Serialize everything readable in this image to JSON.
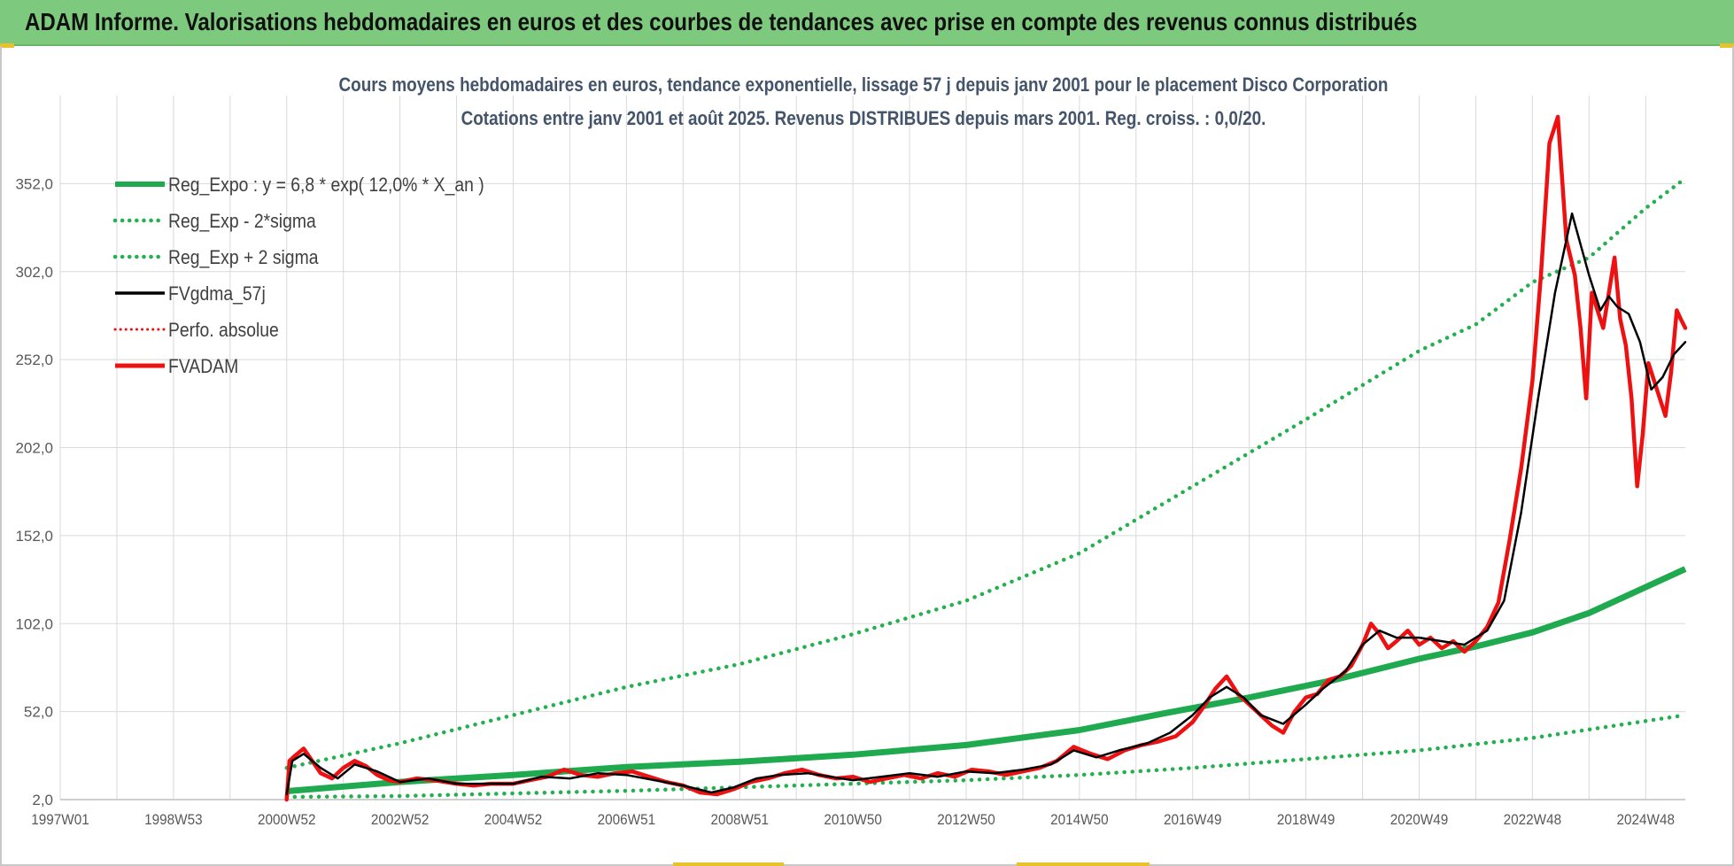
{
  "banner": {
    "title": "ADAM Informe. Valorisations hebdomadaires en euros et des courbes de tendances avec prise en compte des revenus connus distribués"
  },
  "colors": {
    "banner_bg": "#7dc97d",
    "reg_green": "#1faa4f",
    "sigma_green": "#23b04f",
    "gdma_black": "#000000",
    "fvadam_red": "#ee1111",
    "grid": "#d9d9d9"
  },
  "chart_data": {
    "type": "line",
    "title": "Cours moyens hebdomadaires en euros, tendance exponentielle, lissage 57 j depuis janv 2001 pour le placement Disco Corporation",
    "subtitle": "Cotations entre janv 2001 et août 2025. Revenus DISTRIBUES depuis mars 2001. Reg. croiss. : 0,0/20.",
    "xlabel": "",
    "ylabel": "",
    "x_tick_labels": [
      "1997W01",
      "1998W53",
      "2000W52",
      "2002W52",
      "2004W52",
      "2006W51",
      "2008W51",
      "2010W50",
      "2012W50",
      "2014W50",
      "2016W49",
      "2018W49",
      "2020W49",
      "2022W48",
      "2024W48"
    ],
    "x_ticks_year": [
      1997.0,
      1999.0,
      2001.0,
      2003.0,
      2005.0,
      2007.0,
      2009.0,
      2011.0,
      2013.0,
      2015.0,
      2017.0,
      2019.0,
      2021.0,
      2023.0,
      2025.0
    ],
    "y_tick_labels": [
      "2,0",
      "52,0",
      "102,0",
      "152,0",
      "202,0",
      "252,0",
      "302,0",
      "352,0"
    ],
    "y_ticks": [
      2,
      52,
      102,
      152,
      202,
      252,
      302,
      352
    ],
    "xlim": [
      1997.0,
      2025.7
    ],
    "ylim": [
      2,
      402
    ],
    "grid": true,
    "legend_position": "top-left",
    "legend": [
      {
        "label": "Reg_Expo : y = 6,8 * exp( 12,0% *  X_an )",
        "color": "#1faa4f",
        "style": "solid-thick"
      },
      {
        "label": "Reg_Exp - 2*sigma",
        "color": "#23b04f",
        "style": "dotted"
      },
      {
        "label": "Reg_Exp + 2 sigma",
        "color": "#23b04f",
        "style": "dotted"
      },
      {
        "label": "FVgdma_57j",
        "color": "#000000",
        "style": "solid"
      },
      {
        "label": "Perfo. absolue",
        "color": "#ee1111",
        "style": "dotted"
      },
      {
        "label": "FVADAM",
        "color": "#ee1111",
        "style": "solid-thick"
      }
    ],
    "series": [
      {
        "name": "Reg_Expo : y = 6,8 * exp( 12,0% *  X_an )",
        "x": [
          2001.0,
          2003.0,
          2005.0,
          2007.0,
          2009.0,
          2011.0,
          2013.0,
          2015.0,
          2016.5,
          2018.0,
          2019.5,
          2021.0,
          2022.0,
          2023.0,
          2024.0,
          2025.7
        ],
        "y": [
          6.8,
          12.0,
          16.0,
          20.5,
          23.5,
          27.5,
          33.0,
          41.5,
          51.0,
          60.0,
          70.0,
          82.0,
          89.0,
          97.0,
          108.0,
          133.0
        ]
      },
      {
        "name": "Reg_Exp - 2*sigma",
        "x": [
          2001.0,
          2003.0,
          2005.0,
          2007.0,
          2009.0,
          2011.0,
          2013.0,
          2015.0,
          2017.0,
          2019.0,
          2021.0,
          2023.0,
          2025.7
        ],
        "y": [
          3.5,
          4.0,
          5.5,
          7.0,
          9.0,
          11.0,
          13.0,
          16.0,
          20.0,
          25.0,
          30.0,
          37.0,
          50.0
        ]
      },
      {
        "name": "Reg_Exp + 2 sigma",
        "x": [
          2001.0,
          2003.0,
          2005.0,
          2007.0,
          2009.0,
          2011.0,
          2013.0,
          2015.0,
          2017.0,
          2019.0,
          2021.0,
          2022.0,
          2023.0,
          2024.0,
          2025.0,
          2025.7
        ],
        "y": [
          20.0,
          34.0,
          50.0,
          66.0,
          79.0,
          96.0,
          115.0,
          142.0,
          180.0,
          218.0,
          257.0,
          272.0,
          296.0,
          310.0,
          338.0,
          355.0
        ]
      },
      {
        "name": "FVgdma_57j",
        "x": [
          2001.0,
          2001.1,
          2001.3,
          2001.6,
          2001.9,
          2002.2,
          2002.6,
          2003.0,
          2003.5,
          2004.0,
          2004.5,
          2005.0,
          2005.5,
          2006.0,
          2006.5,
          2007.0,
          2007.5,
          2008.0,
          2008.5,
          2008.9,
          2009.3,
          2009.7,
          2010.2,
          2010.6,
          2011.0,
          2011.5,
          2012.0,
          2012.5,
          2013.0,
          2013.5,
          2014.0,
          2014.5,
          2014.9,
          2015.3,
          2015.7,
          2016.2,
          2016.6,
          2017.0,
          2017.3,
          2017.6,
          2017.9,
          2018.2,
          2018.6,
          2019.0,
          2019.3,
          2019.7,
          2020.0,
          2020.3,
          2020.6,
          2021.0,
          2021.4,
          2021.8,
          2022.2,
          2022.5,
          2022.8,
          2023.1,
          2023.4,
          2023.7,
          2024.0,
          2024.2,
          2024.35,
          2024.5,
          2024.7,
          2024.9,
          2025.1,
          2025.3,
          2025.5,
          2025.7
        ],
        "y": [
          5,
          24,
          28,
          20,
          14,
          22,
          18,
          12,
          14,
          11,
          11,
          11,
          15,
          14,
          17,
          16,
          13,
          10,
          6,
          9,
          14,
          16,
          17,
          15,
          13,
          15,
          17,
          15,
          18,
          17,
          19,
          22,
          30,
          26,
          30,
          34,
          40,
          50,
          60,
          66,
          60,
          50,
          45,
          56,
          65,
          75,
          90,
          98,
          94,
          94,
          92,
          90,
          98,
          115,
          165,
          230,
          290,
          335,
          300,
          280,
          288,
          282,
          278,
          262,
          235,
          242,
          255,
          262
        ]
      },
      {
        "name": "FVADAM",
        "x": [
          2001.0,
          2001.05,
          2001.15,
          2001.3,
          2001.45,
          2001.6,
          2001.8,
          2002.0,
          2002.2,
          2002.4,
          2002.6,
          2002.8,
          2003.0,
          2003.3,
          2003.6,
          2004.0,
          2004.3,
          2004.6,
          2005.0,
          2005.3,
          2005.6,
          2005.9,
          2006.2,
          2006.5,
          2006.8,
          2007.1,
          2007.4,
          2007.7,
          2008.0,
          2008.3,
          2008.6,
          2008.9,
          2009.2,
          2009.5,
          2009.8,
          2010.1,
          2010.4,
          2010.7,
          2011.0,
          2011.3,
          2011.6,
          2011.9,
          2012.2,
          2012.5,
          2012.8,
          2013.1,
          2013.4,
          2013.7,
          2014.0,
          2014.3,
          2014.6,
          2014.9,
          2015.2,
          2015.5,
          2015.8,
          2016.1,
          2016.4,
          2016.7,
          2017.0,
          2017.2,
          2017.4,
          2017.6,
          2017.8,
          2018.0,
          2018.2,
          2018.4,
          2018.6,
          2018.8,
          2019.0,
          2019.2,
          2019.4,
          2019.6,
          2019.8,
          2020.0,
          2020.15,
          2020.3,
          2020.45,
          2020.6,
          2020.8,
          2021.0,
          2021.2,
          2021.4,
          2021.6,
          2021.8,
          2022.0,
          2022.2,
          2022.4,
          2022.6,
          2022.8,
          2023.0,
          2023.15,
          2023.3,
          2023.45,
          2023.6,
          2023.75,
          2023.85,
          2023.95,
          2024.05,
          2024.15,
          2024.25,
          2024.35,
          2024.45,
          2024.55,
          2024.65,
          2024.75,
          2024.85,
          2024.95,
          2025.05,
          2025.15,
          2025.25,
          2025.35,
          2025.45,
          2025.55,
          2025.62,
          2025.7
        ],
        "y": [
          2,
          24,
          27,
          31,
          24,
          17,
          14,
          20,
          24,
          21,
          16,
          13,
          12,
          14,
          13,
          11,
          10,
          11,
          11,
          13,
          15,
          19,
          16,
          15,
          17,
          18,
          15,
          12,
          10,
          6,
          5,
          8,
          12,
          14,
          17,
          19,
          16,
          14,
          15,
          12,
          14,
          16,
          14,
          17,
          15,
          19,
          18,
          16,
          18,
          20,
          24,
          32,
          28,
          25,
          30,
          33,
          35,
          38,
          46,
          55,
          65,
          72,
          62,
          56,
          50,
          44,
          40,
          52,
          60,
          62,
          70,
          72,
          78,
          90,
          102,
          96,
          88,
          92,
          98,
          90,
          94,
          88,
          92,
          86,
          92,
          100,
          114,
          150,
          190,
          240,
          300,
          375,
          390,
          320,
          300,
          270,
          230,
          290,
          280,
          270,
          290,
          310,
          275,
          260,
          230,
          180,
          210,
          250,
          240,
          230,
          220,
          245,
          280,
          275,
          270
        ]
      }
    ]
  }
}
